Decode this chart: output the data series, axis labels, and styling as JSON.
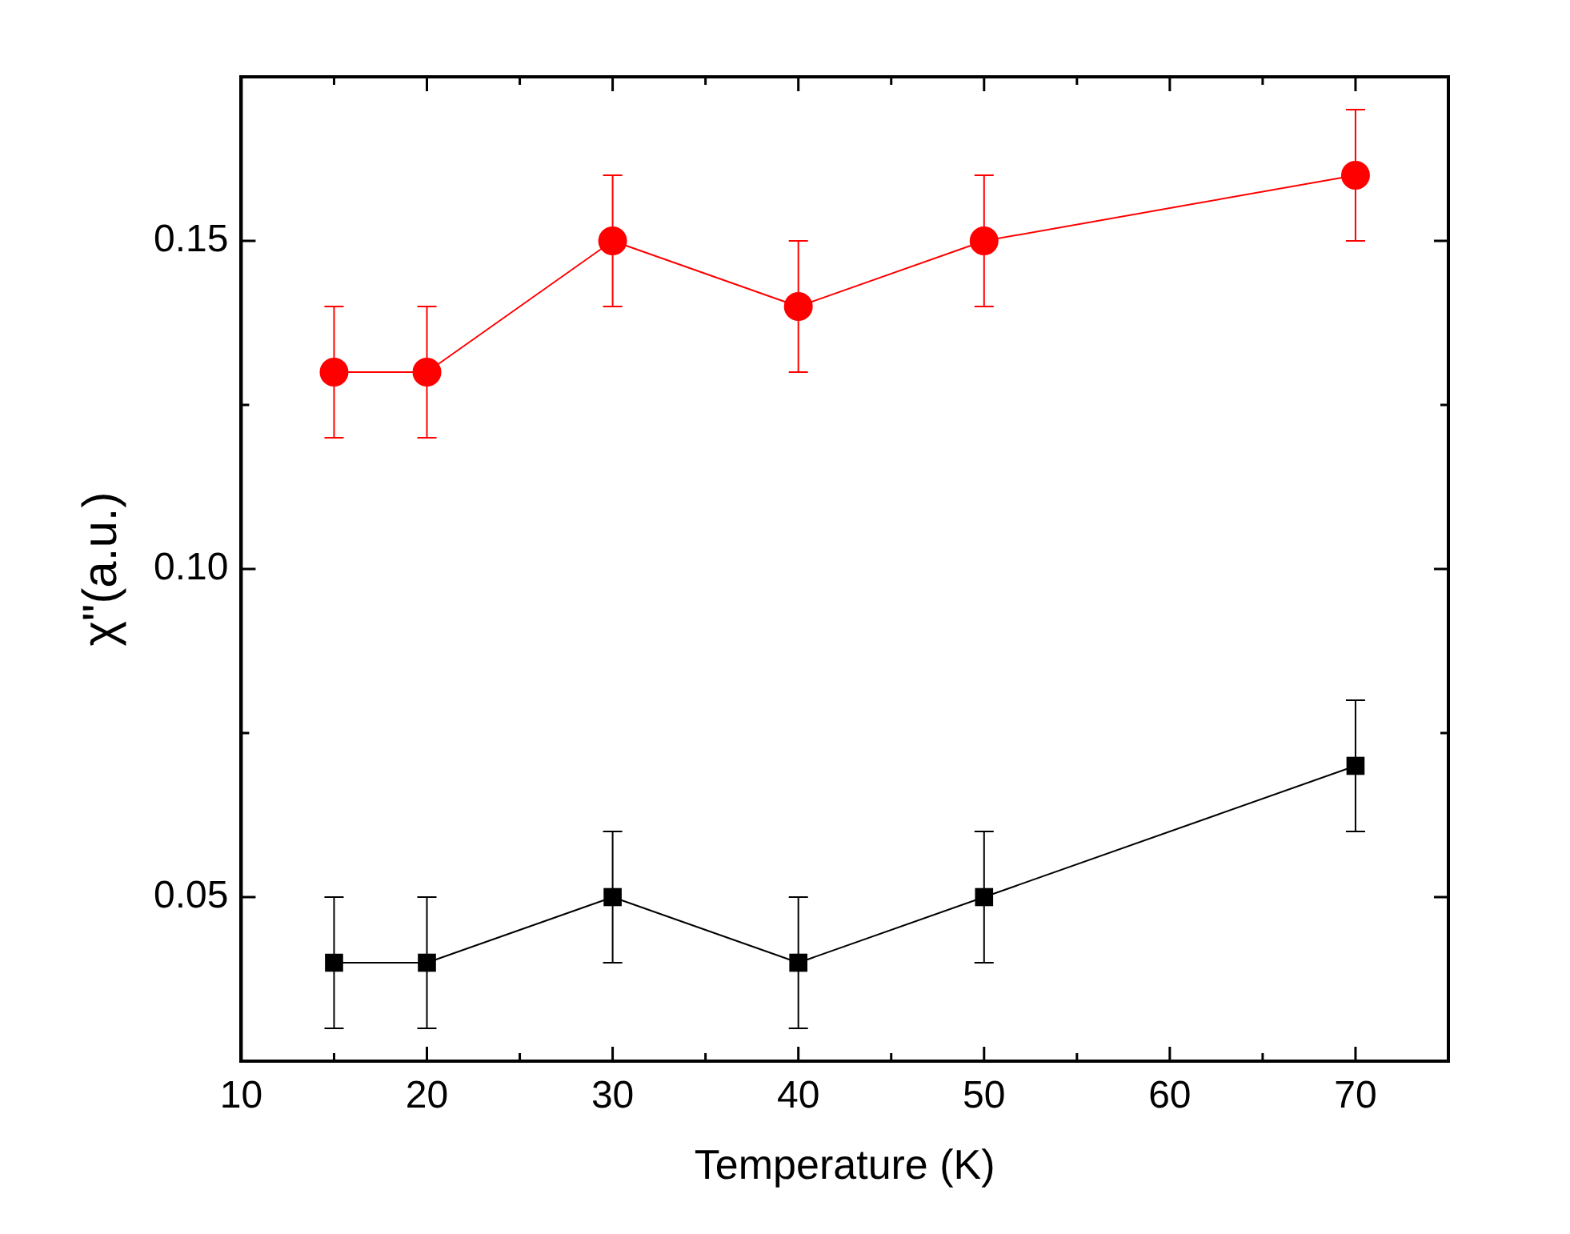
{
  "chart_data": {
    "type": "line",
    "xlabel": "Temperature (K)",
    "ylabel": "χ\"(a.u.)",
    "x": [
      15,
      20,
      30,
      40,
      50,
      70
    ],
    "series": [
      {
        "color": "#ff0000",
        "marker": "circle",
        "values": [
          0.13,
          0.13,
          0.15,
          0.14,
          0.15,
          0.16
        ],
        "errors": [
          0.01,
          0.01,
          0.01,
          0.01,
          0.01,
          0.01
        ]
      },
      {
        "color": "#000000",
        "marker": "square",
        "values": [
          0.04,
          0.04,
          0.05,
          0.04,
          0.05,
          0.07
        ],
        "errors": [
          0.01,
          0.01,
          0.01,
          0.01,
          0.01,
          0.01
        ]
      }
    ],
    "xlim": [
      10,
      75
    ],
    "xticks": [
      10,
      {
        "value": 15,
        "label": null
      },
      20,
      {
        "value": 25,
        "label": null
      },
      30,
      {
        "value": 35,
        "label": null
      },
      40,
      {
        "value": 45,
        "label": null
      },
      50,
      {
        "value": 55,
        "label": null
      },
      60,
      {
        "value": 65,
        "label": null
      },
      70,
      {
        "value": 75,
        "label": null
      }
    ],
    "ylim": [
      0.025,
      0.175
    ],
    "yticks": [
      {
        "value": 0.025,
        "label": null
      },
      0.05,
      {
        "value": 0.075,
        "label": null
      },
      {
        "value": 0.1,
        "label": "0.10"
      },
      {
        "value": 0.125,
        "label": null
      },
      0.15,
      {
        "value": 0.175,
        "label": null
      }
    ],
    "grid": false,
    "legend": false,
    "line_style": "solid"
  }
}
